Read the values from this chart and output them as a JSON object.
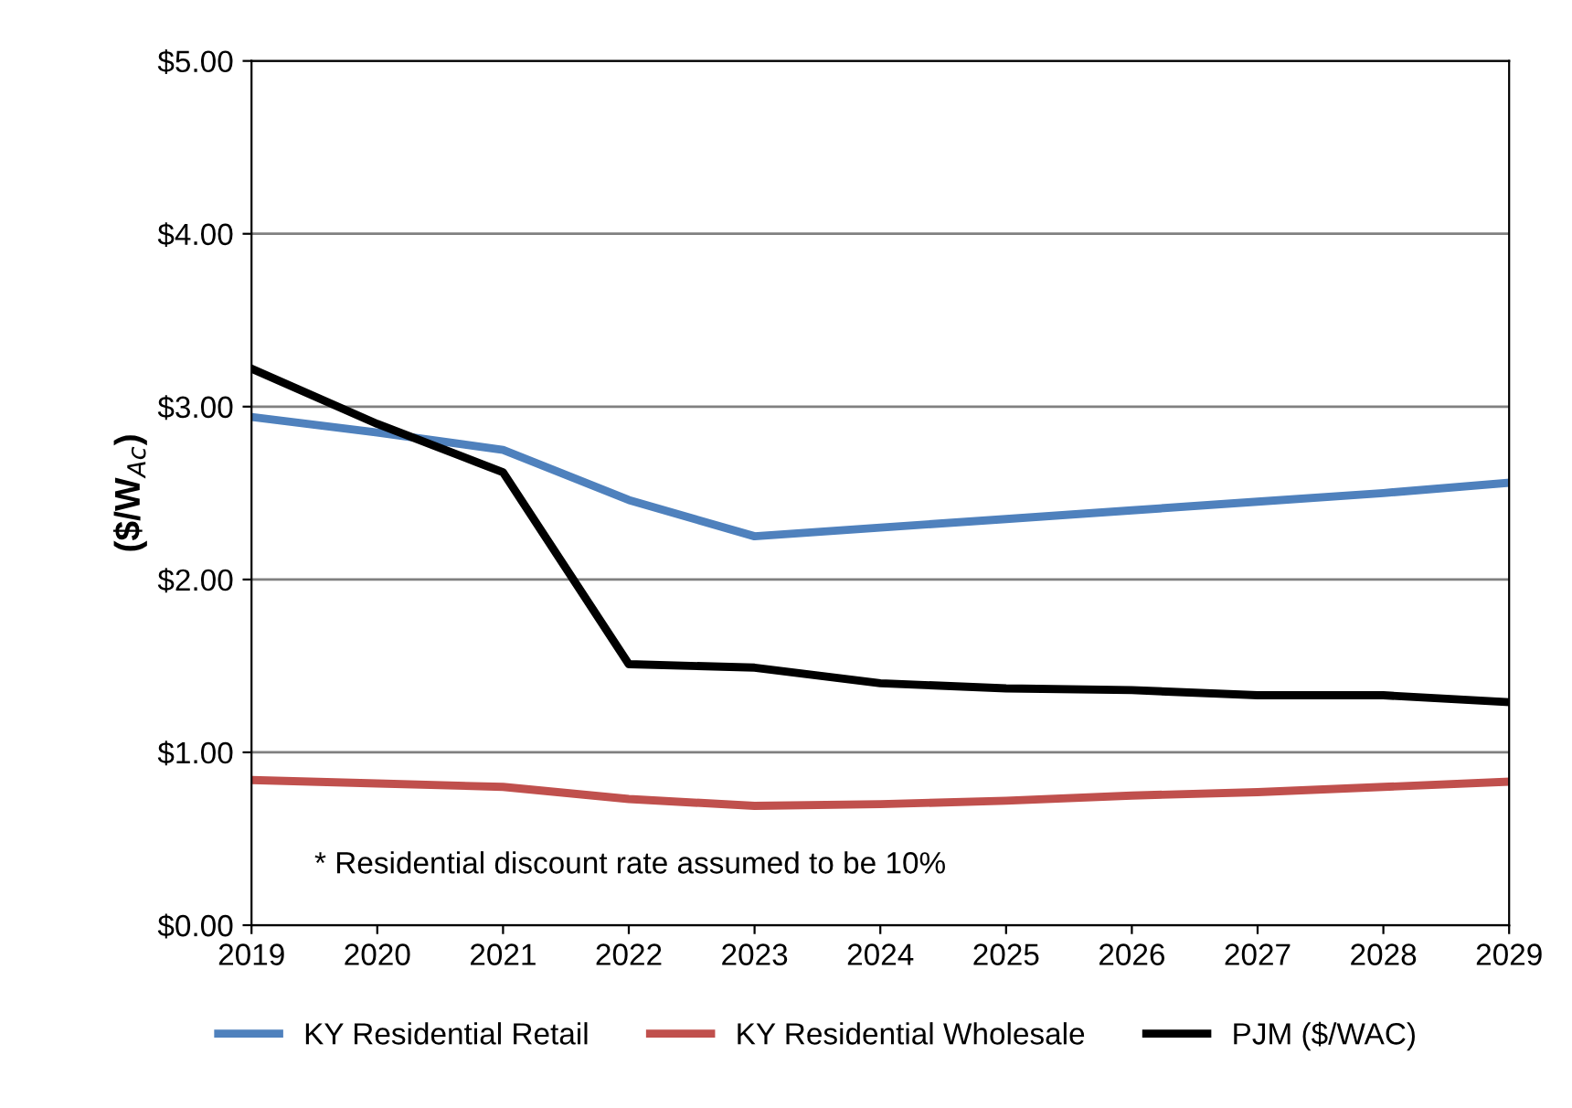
{
  "chart_data": {
    "type": "line",
    "ylabel": "($/W$_{Ac}$)",
    "x": [
      2019,
      2020,
      2021,
      2022,
      2023,
      2024,
      2025,
      2026,
      2027,
      2028,
      2029
    ],
    "series": [
      {
        "name": "KY Residential Retail",
        "color": "#4f81bd",
        "values": [
          2.94,
          2.85,
          2.75,
          2.46,
          2.25,
          2.3,
          2.35,
          2.4,
          2.45,
          2.5,
          2.56
        ]
      },
      {
        "name": "KY Residential Wholesale",
        "color": "#c0504d",
        "values": [
          0.84,
          0.82,
          0.8,
          0.73,
          0.69,
          0.7,
          0.72,
          0.75,
          0.77,
          0.8,
          0.83
        ]
      },
      {
        "name": "PJM ($/WAC)",
        "color": "#000000",
        "values": [
          3.22,
          2.9,
          2.62,
          1.51,
          1.49,
          1.4,
          1.37,
          1.36,
          1.33,
          1.33,
          1.29
        ]
      }
    ],
    "xlim": [
      2019,
      2029
    ],
    "xticks": [
      2019,
      2020,
      2021,
      2022,
      2023,
      2024,
      2025,
      2026,
      2027,
      2028,
      2029
    ],
    "ylim": [
      0,
      5
    ],
    "yticks": [
      {
        "value": 0,
        "label": "$0.00"
      },
      {
        "value": 1,
        "label": "$1.00"
      },
      {
        "value": 2,
        "label": "$2.00"
      },
      {
        "value": 3,
        "label": "$3.00"
      },
      {
        "value": 4,
        "label": "$4.00"
      },
      {
        "value": 5,
        "label": "$5.00"
      }
    ],
    "grid": "y",
    "legend": "bottom",
    "marker": "none",
    "line_style": "solid",
    "annotations": [
      "* Residential discount rate assumed to be 10%"
    ]
  }
}
